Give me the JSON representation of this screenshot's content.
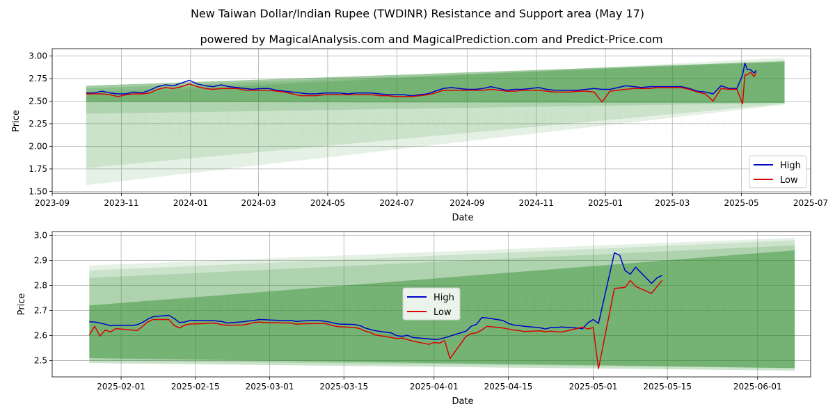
{
  "title": "New Taiwan Dollar/Indian Rupee (TWDINR) Resistance and Support area (May 17)",
  "subtitle": "powered by MagicalAnalysis.com and MagicalPrediction.com and Predict-Price.com",
  "watermark": "MagicalAnalysis.com    MagicalPrediction.com",
  "colors": {
    "high": "#0000cc",
    "low": "#dd0000",
    "band": "#2e8b2e",
    "grid": "#b0b0b0"
  },
  "chart_data": [
    {
      "type": "line",
      "xlabel": "Date",
      "ylabel": "Price",
      "grid": true,
      "legend": "lower right",
      "xlim": [
        "2023-09-01",
        "2025-07-01"
      ],
      "ylim": [
        1.48,
        3.08
      ],
      "x_ticks": [
        "2023-09",
        "2023-11",
        "2024-01",
        "2024-03",
        "2024-05",
        "2024-07",
        "2024-09",
        "2024-11",
        "2025-01",
        "2025-03",
        "2025-05",
        "2025-07"
      ],
      "y_ticks": [
        "1.50",
        "1.75",
        "2.00",
        "2.25",
        "2.50",
        "2.75",
        "3.00"
      ],
      "bands": [
        {
          "start": "2023-10-01",
          "end": "2025-06-08",
          "upper": [
            2.57,
            2.98
          ],
          "lower": [
            1.57,
            2.46
          ]
        },
        {
          "start": "2023-10-01",
          "end": "2025-06-08",
          "upper": [
            2.6,
            2.95
          ],
          "lower": [
            1.76,
            2.47
          ]
        },
        {
          "start": "2023-10-01",
          "end": "2025-06-08",
          "upper": [
            2.64,
            2.93
          ],
          "lower": [
            2.36,
            2.48
          ]
        },
        {
          "start": "2023-10-01",
          "end": "2025-06-08",
          "upper": [
            2.67,
            2.94
          ],
          "lower": [
            2.49,
            2.48
          ]
        }
      ],
      "series": [
        {
          "name": "High",
          "x": [
            "2023-10-01",
            "2023-10-08",
            "2023-10-15",
            "2023-10-22",
            "2023-10-29",
            "2023-11-05",
            "2023-11-12",
            "2023-11-19",
            "2023-11-26",
            "2023-12-03",
            "2023-12-10",
            "2023-12-17",
            "2023-12-24",
            "2023-12-31",
            "2024-01-07",
            "2024-01-14",
            "2024-01-21",
            "2024-01-28",
            "2024-02-04",
            "2024-02-11",
            "2024-02-18",
            "2024-02-25",
            "2024-03-03",
            "2024-03-10",
            "2024-03-17",
            "2024-03-24",
            "2024-03-31",
            "2024-04-07",
            "2024-04-14",
            "2024-04-21",
            "2024-04-28",
            "2024-05-05",
            "2024-05-12",
            "2024-05-19",
            "2024-05-26",
            "2024-06-02",
            "2024-06-09",
            "2024-06-16",
            "2024-06-23",
            "2024-06-30",
            "2024-07-07",
            "2024-07-14",
            "2024-07-21",
            "2024-07-28",
            "2024-08-04",
            "2024-08-11",
            "2024-08-18",
            "2024-08-25",
            "2024-09-01",
            "2024-09-08",
            "2024-09-15",
            "2024-09-22",
            "2024-09-29",
            "2024-10-06",
            "2024-10-13",
            "2024-10-20",
            "2024-10-27",
            "2024-11-03",
            "2024-11-10",
            "2024-11-17",
            "2024-11-24",
            "2024-12-01",
            "2024-12-08",
            "2024-12-15",
            "2024-12-22",
            "2024-12-29",
            "2025-01-05",
            "2025-01-12",
            "2025-01-19",
            "2025-01-26",
            "2025-02-02",
            "2025-02-09",
            "2025-02-16",
            "2025-02-23",
            "2025-03-02",
            "2025-03-09",
            "2025-03-16",
            "2025-03-23",
            "2025-03-30",
            "2025-04-06",
            "2025-04-13",
            "2025-04-20",
            "2025-04-27",
            "2025-05-02",
            "2025-05-04",
            "2025-05-06",
            "2025-05-09",
            "2025-05-12",
            "2025-05-14"
          ],
          "values": [
            2.59,
            2.59,
            2.61,
            2.59,
            2.58,
            2.58,
            2.6,
            2.59,
            2.62,
            2.66,
            2.68,
            2.67,
            2.7,
            2.73,
            2.69,
            2.67,
            2.66,
            2.68,
            2.66,
            2.65,
            2.64,
            2.63,
            2.64,
            2.64,
            2.62,
            2.61,
            2.6,
            2.59,
            2.58,
            2.58,
            2.59,
            2.59,
            2.59,
            2.58,
            2.59,
            2.59,
            2.59,
            2.58,
            2.57,
            2.57,
            2.57,
            2.56,
            2.57,
            2.58,
            2.61,
            2.64,
            2.65,
            2.64,
            2.63,
            2.63,
            2.64,
            2.66,
            2.64,
            2.62,
            2.63,
            2.63,
            2.64,
            2.65,
            2.63,
            2.62,
            2.62,
            2.62,
            2.62,
            2.63,
            2.64,
            2.63,
            2.63,
            2.65,
            2.67,
            2.66,
            2.65,
            2.66,
            2.66,
            2.66,
            2.66,
            2.66,
            2.64,
            2.61,
            2.6,
            2.58,
            2.67,
            2.64,
            2.64,
            2.79,
            2.92,
            2.85,
            2.85,
            2.81,
            2.84
          ]
        },
        {
          "name": "Low",
          "x": [
            "2023-10-01",
            "2023-10-08",
            "2023-10-15",
            "2023-10-22",
            "2023-10-29",
            "2023-11-05",
            "2023-11-12",
            "2023-11-19",
            "2023-11-26",
            "2023-12-03",
            "2023-12-10",
            "2023-12-17",
            "2023-12-24",
            "2023-12-31",
            "2024-01-07",
            "2024-01-14",
            "2024-01-21",
            "2024-01-28",
            "2024-02-04",
            "2024-02-11",
            "2024-02-18",
            "2024-02-25",
            "2024-03-03",
            "2024-03-10",
            "2024-03-17",
            "2024-03-24",
            "2024-03-31",
            "2024-04-07",
            "2024-04-14",
            "2024-04-21",
            "2024-04-28",
            "2024-05-05",
            "2024-05-12",
            "2024-05-19",
            "2024-05-26",
            "2024-06-02",
            "2024-06-09",
            "2024-06-16",
            "2024-06-23",
            "2024-06-30",
            "2024-07-07",
            "2024-07-14",
            "2024-07-21",
            "2024-07-28",
            "2024-08-04",
            "2024-08-11",
            "2024-08-18",
            "2024-08-25",
            "2024-09-01",
            "2024-09-08",
            "2024-09-15",
            "2024-09-22",
            "2024-09-29",
            "2024-10-06",
            "2024-10-13",
            "2024-10-20",
            "2024-10-27",
            "2024-11-03",
            "2024-11-10",
            "2024-11-17",
            "2024-11-24",
            "2024-12-01",
            "2024-12-08",
            "2024-12-15",
            "2024-12-22",
            "2024-12-29",
            "2025-01-05",
            "2025-01-12",
            "2025-01-19",
            "2025-01-26",
            "2025-02-02",
            "2025-02-09",
            "2025-02-16",
            "2025-02-23",
            "2025-03-02",
            "2025-03-09",
            "2025-03-16",
            "2025-03-23",
            "2025-03-30",
            "2025-04-06",
            "2025-04-13",
            "2025-04-20",
            "2025-04-27",
            "2025-05-02",
            "2025-05-04",
            "2025-05-06",
            "2025-05-09",
            "2025-05-12",
            "2025-05-14"
          ],
          "values": [
            2.58,
            2.58,
            2.58,
            2.57,
            2.55,
            2.57,
            2.58,
            2.58,
            2.59,
            2.63,
            2.65,
            2.64,
            2.66,
            2.69,
            2.66,
            2.64,
            2.63,
            2.64,
            2.64,
            2.64,
            2.62,
            2.62,
            2.62,
            2.62,
            2.61,
            2.6,
            2.58,
            2.56,
            2.56,
            2.56,
            2.57,
            2.57,
            2.57,
            2.57,
            2.57,
            2.57,
            2.57,
            2.56,
            2.56,
            2.55,
            2.55,
            2.55,
            2.56,
            2.57,
            2.59,
            2.62,
            2.62,
            2.62,
            2.62,
            2.62,
            2.62,
            2.63,
            2.62,
            2.61,
            2.61,
            2.62,
            2.62,
            2.62,
            2.61,
            2.6,
            2.6,
            2.6,
            2.61,
            2.61,
            2.6,
            2.49,
            2.61,
            2.62,
            2.63,
            2.64,
            2.64,
            2.64,
            2.65,
            2.65,
            2.65,
            2.65,
            2.63,
            2.6,
            2.58,
            2.5,
            2.64,
            2.63,
            2.63,
            2.47,
            2.79,
            2.79,
            2.82,
            2.77,
            2.82
          ]
        }
      ]
    },
    {
      "type": "line",
      "xlabel": "Date",
      "ylabel": "Price",
      "grid": true,
      "legend": "center",
      "xlim": [
        "2025-01-19",
        "2025-06-11"
      ],
      "ylim": [
        2.435,
        3.015
      ],
      "x_ticks": [
        "2025-02-01",
        "2025-02-15",
        "2025-03-01",
        "2025-03-15",
        "2025-04-01",
        "2025-04-15",
        "2025-05-01",
        "2025-05-15",
        "2025-06-01"
      ],
      "y_ticks": [
        "2.5",
        "2.6",
        "2.7",
        "2.8",
        "2.9",
        "3.0"
      ],
      "bands": [
        {
          "start": "2025-01-26",
          "end": "2025-06-08",
          "upper": [
            2.88,
            2.99
          ],
          "lower": [
            2.49,
            2.46
          ]
        },
        {
          "start": "2025-01-26",
          "end": "2025-06-08",
          "upper": [
            2.86,
            2.98
          ],
          "lower": [
            2.49,
            2.46
          ]
        },
        {
          "start": "2025-01-26",
          "end": "2025-06-08",
          "upper": [
            2.83,
            2.96
          ],
          "lower": [
            2.5,
            2.47
          ]
        },
        {
          "start": "2025-01-26",
          "end": "2025-06-08",
          "upper": [
            2.72,
            2.94
          ],
          "lower": [
            2.51,
            2.47
          ]
        }
      ],
      "series": [
        {
          "name": "High",
          "x": [
            "2025-01-26",
            "2025-01-27",
            "2025-01-28",
            "2025-01-29",
            "2025-01-30",
            "2025-01-31",
            "2025-02-03",
            "2025-02-04",
            "2025-02-05",
            "2025-02-06",
            "2025-02-07",
            "2025-02-10",
            "2025-02-11",
            "2025-02-12",
            "2025-02-13",
            "2025-02-14",
            "2025-02-17",
            "2025-02-18",
            "2025-02-19",
            "2025-02-20",
            "2025-02-21",
            "2025-02-24",
            "2025-02-25",
            "2025-02-26",
            "2025-02-27",
            "2025-02-28",
            "2025-03-03",
            "2025-03-04",
            "2025-03-05",
            "2025-03-06",
            "2025-03-07",
            "2025-03-10",
            "2025-03-11",
            "2025-03-12",
            "2025-03-13",
            "2025-03-14",
            "2025-03-17",
            "2025-03-18",
            "2025-03-19",
            "2025-03-20",
            "2025-03-21",
            "2025-03-24",
            "2025-03-25",
            "2025-03-26",
            "2025-03-27",
            "2025-03-28",
            "2025-03-31",
            "2025-04-01",
            "2025-04-02",
            "2025-04-03",
            "2025-04-04",
            "2025-04-07",
            "2025-04-08",
            "2025-04-09",
            "2025-04-10",
            "2025-04-11",
            "2025-04-14",
            "2025-04-15",
            "2025-04-16",
            "2025-04-17",
            "2025-04-18",
            "2025-04-21",
            "2025-04-22",
            "2025-04-23",
            "2025-04-24",
            "2025-04-25",
            "2025-04-28",
            "2025-04-29",
            "2025-04-30",
            "2025-05-01",
            "2025-05-02",
            "2025-05-05",
            "2025-05-06",
            "2025-05-07",
            "2025-05-08",
            "2025-05-09",
            "2025-05-12",
            "2025-05-13",
            "2025-05-14"
          ],
          "values": [
            2.655,
            2.654,
            2.65,
            2.645,
            2.639,
            2.641,
            2.64,
            2.643,
            2.652,
            2.665,
            2.675,
            2.681,
            2.668,
            2.652,
            2.654,
            2.661,
            2.659,
            2.66,
            2.658,
            2.656,
            2.65,
            2.655,
            2.658,
            2.66,
            2.664,
            2.663,
            2.66,
            2.659,
            2.661,
            2.656,
            2.658,
            2.661,
            2.658,
            2.655,
            2.65,
            2.646,
            2.644,
            2.64,
            2.63,
            2.624,
            2.619,
            2.61,
            2.599,
            2.597,
            2.601,
            2.592,
            2.587,
            2.584,
            2.586,
            2.591,
            2.598,
            2.617,
            2.637,
            2.645,
            2.672,
            2.67,
            2.66,
            2.648,
            2.642,
            2.64,
            2.637,
            2.631,
            2.626,
            2.632,
            2.632,
            2.634,
            2.63,
            2.627,
            2.651,
            2.664,
            2.648,
            2.93,
            2.92,
            2.86,
            2.845,
            2.873,
            2.808,
            2.83,
            2.84
          ]
        },
        {
          "name": "Low",
          "x": [
            "2025-01-26",
            "2025-01-27",
            "2025-01-28",
            "2025-01-29",
            "2025-01-30",
            "2025-01-31",
            "2025-02-03",
            "2025-02-04",
            "2025-02-05",
            "2025-02-06",
            "2025-02-07",
            "2025-02-10",
            "2025-02-11",
            "2025-02-12",
            "2025-02-13",
            "2025-02-14",
            "2025-02-17",
            "2025-02-18",
            "2025-02-19",
            "2025-02-20",
            "2025-02-21",
            "2025-02-24",
            "2025-02-25",
            "2025-02-26",
            "2025-02-27",
            "2025-02-28",
            "2025-03-03",
            "2025-03-04",
            "2025-03-05",
            "2025-03-06",
            "2025-03-07",
            "2025-03-10",
            "2025-03-11",
            "2025-03-12",
            "2025-03-13",
            "2025-03-14",
            "2025-03-17",
            "2025-03-18",
            "2025-03-19",
            "2025-03-20",
            "2025-03-21",
            "2025-03-24",
            "2025-03-25",
            "2025-03-26",
            "2025-03-27",
            "2025-03-28",
            "2025-03-31",
            "2025-04-01",
            "2025-04-02",
            "2025-04-03",
            "2025-04-04",
            "2025-04-07",
            "2025-04-08",
            "2025-04-09",
            "2025-04-10",
            "2025-04-11",
            "2025-04-14",
            "2025-04-15",
            "2025-04-16",
            "2025-04-17",
            "2025-04-18",
            "2025-04-21",
            "2025-04-22",
            "2025-04-23",
            "2025-04-24",
            "2025-04-25",
            "2025-04-28",
            "2025-04-29",
            "2025-04-30",
            "2025-05-01",
            "2025-05-02",
            "2025-05-05",
            "2025-05-06",
            "2025-05-07",
            "2025-05-08",
            "2025-05-09",
            "2025-05-12",
            "2025-05-13",
            "2025-05-14"
          ],
          "values": [
            2.603,
            2.637,
            2.598,
            2.622,
            2.614,
            2.628,
            2.622,
            2.62,
            2.636,
            2.654,
            2.664,
            2.664,
            2.64,
            2.63,
            2.642,
            2.646,
            2.648,
            2.65,
            2.648,
            2.643,
            2.641,
            2.642,
            2.646,
            2.652,
            2.654,
            2.652,
            2.651,
            2.65,
            2.65,
            2.645,
            2.647,
            2.648,
            2.649,
            2.645,
            2.639,
            2.635,
            2.632,
            2.628,
            2.618,
            2.612,
            2.602,
            2.592,
            2.588,
            2.59,
            2.584,
            2.578,
            2.565,
            2.572,
            2.57,
            2.58,
            2.508,
            2.596,
            2.608,
            2.611,
            2.622,
            2.637,
            2.63,
            2.626,
            2.622,
            2.62,
            2.616,
            2.619,
            2.615,
            2.618,
            2.615,
            2.614,
            2.628,
            2.634,
            2.626,
            2.632,
            2.468,
            2.788,
            2.79,
            2.792,
            2.82,
            2.796,
            2.768,
            2.795,
            2.82
          ]
        }
      ]
    }
  ]
}
